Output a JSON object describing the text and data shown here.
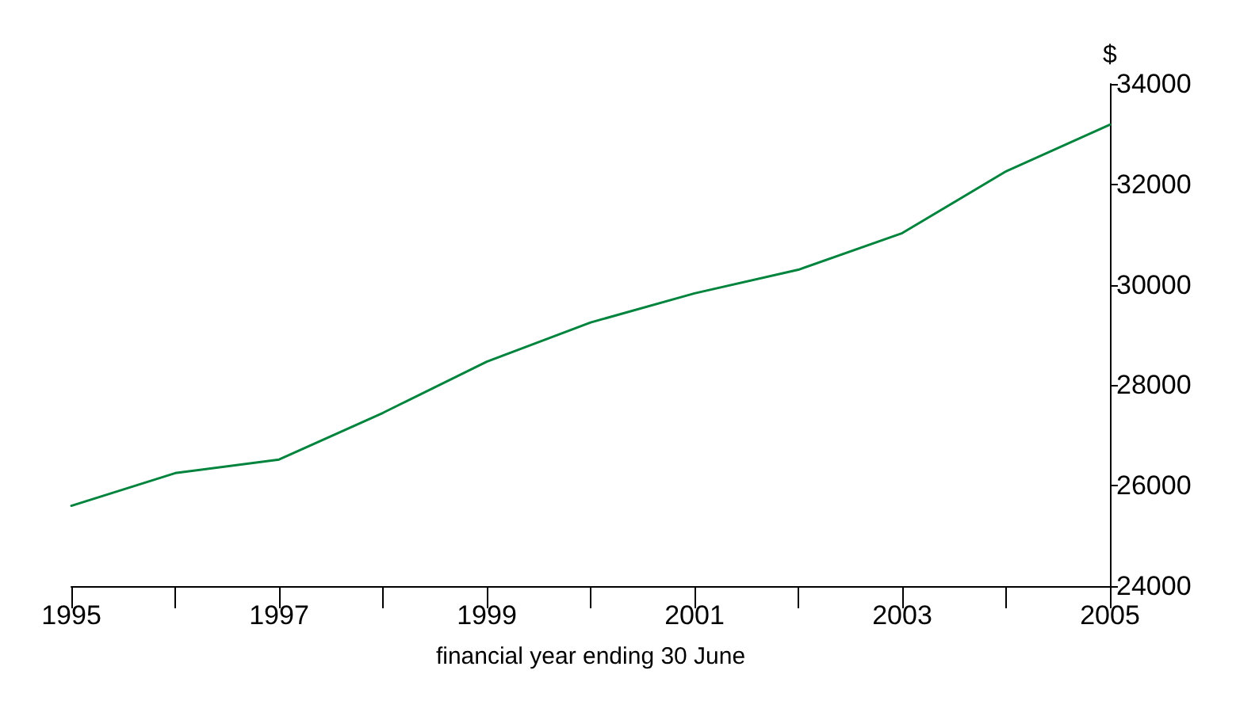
{
  "chart_data": {
    "type": "line",
    "xlabel": "financial year ending 30 June",
    "ylabel": "$",
    "x": [
      1995,
      1996,
      1997,
      1998,
      1999,
      2000,
      2001,
      2002,
      2003,
      2004,
      2005
    ],
    "series": [
      {
        "color": "#00843d",
        "values": [
          25600,
          26250,
          26520,
          27450,
          28470,
          29250,
          29830,
          30300,
          31030,
          32260,
          33190
        ]
      }
    ],
    "xlim": [
      1995,
      2005
    ],
    "xticks": [
      1995,
      {
        "value": 1996,
        "label": null
      },
      1997,
      {
        "value": 1998,
        "label": null
      },
      1999,
      {
        "value": 2000,
        "label": null
      },
      2001,
      {
        "value": 2002,
        "label": null
      },
      2003,
      {
        "value": 2004,
        "label": null
      },
      2005
    ],
    "ylim": [
      24000,
      34000
    ],
    "yticks": [
      24000,
      26000,
      28000,
      30000,
      32000,
      34000
    ],
    "grid": false,
    "marker": "none",
    "line_style": "solid"
  }
}
